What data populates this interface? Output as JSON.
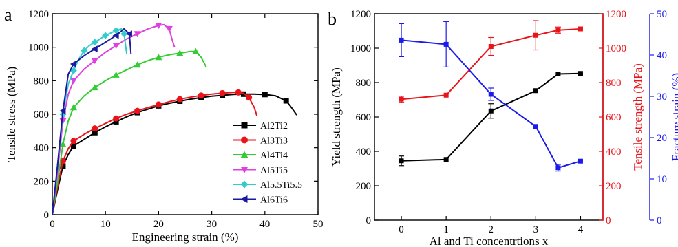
{
  "chart_data": [
    {
      "type": "line",
      "panel_label": "a",
      "xlabel": "Engineering strain (%)",
      "ylabel": "Tensile stress (MPa)",
      "xlim": [
        0,
        50
      ],
      "ylim": [
        0,
        1200
      ],
      "xticks": [
        0,
        10,
        20,
        30,
        40,
        50
      ],
      "yticks": [
        0,
        200,
        400,
        600,
        800,
        1000,
        1200
      ],
      "legend_position": "bottom-right",
      "series": [
        {
          "name": "Al2Ti2",
          "color": "#000000",
          "marker": "square",
          "x": [
            0,
            1,
            2,
            3,
            4,
            6,
            8,
            10,
            12,
            14,
            16,
            18,
            20,
            22,
            24,
            26,
            28,
            30,
            32,
            34,
            36,
            38,
            40,
            42,
            44,
            45,
            46
          ],
          "y": [
            0,
            150,
            290,
            360,
            410,
            450,
            490,
            525,
            555,
            585,
            610,
            630,
            650,
            665,
            678,
            690,
            700,
            708,
            713,
            718,
            720,
            720,
            718,
            710,
            680,
            640,
            595
          ]
        },
        {
          "name": "Al3Ti3",
          "color": "#e8141a",
          "marker": "circle",
          "x": [
            0,
            1,
            2,
            3,
            4,
            6,
            8,
            10,
            12,
            14,
            16,
            18,
            20,
            22,
            24,
            26,
            28,
            30,
            32,
            34,
            35,
            36,
            37,
            38,
            38.5
          ],
          "y": [
            0,
            170,
            320,
            395,
            440,
            480,
            515,
            545,
            575,
            600,
            620,
            640,
            658,
            675,
            690,
            702,
            712,
            720,
            726,
            730,
            730,
            725,
            700,
            640,
            590
          ]
        },
        {
          "name": "Al4Ti4",
          "color": "#33cc33",
          "marker": "triangle",
          "x": [
            0,
            1,
            2,
            3,
            4,
            6,
            8,
            10,
            12,
            14,
            16,
            18,
            20,
            22,
            24,
            26,
            27,
            28,
            29
          ],
          "y": [
            0,
            200,
            420,
            560,
            640,
            710,
            760,
            800,
            835,
            865,
            895,
            920,
            940,
            955,
            965,
            975,
            975,
            940,
            880
          ]
        },
        {
          "name": "Al5Ti5",
          "color": "#e040e0",
          "marker": "tri-down",
          "x": [
            0,
            1,
            2,
            3,
            4,
            6,
            8,
            10,
            12,
            14,
            16,
            18,
            20,
            21,
            22,
            22.5,
            23
          ],
          "y": [
            0,
            260,
            560,
            720,
            800,
            870,
            920,
            970,
            1010,
            1050,
            1080,
            1110,
            1130,
            1135,
            1110,
            1050,
            1000
          ]
        },
        {
          "name": "Al5.5Ti5.5",
          "color": "#33cccc",
          "marker": "diamond",
          "x": [
            0,
            1,
            2,
            3,
            4,
            5,
            6,
            7,
            8,
            9,
            10,
            11,
            12,
            13,
            13.5,
            14
          ],
          "y": [
            0,
            300,
            600,
            780,
            860,
            930,
            980,
            1010,
            1030,
            1050,
            1070,
            1085,
            1100,
            1110,
            1080,
            960
          ]
        },
        {
          "name": "Al6Ti6",
          "color": "#1a1aa0",
          "marker": "tri-left",
          "x": [
            0,
            1,
            2,
            3,
            4,
            6,
            8,
            10,
            12,
            13.5,
            14.5,
            14.8
          ],
          "y": [
            0,
            300,
            620,
            840,
            900,
            950,
            990,
            1030,
            1070,
            1110,
            1080,
            960
          ]
        }
      ]
    },
    {
      "type": "line",
      "panel_label": "b",
      "xlabel": "Al and Ti concentrtions x",
      "ylabel_left": "Yield strength (MPa)",
      "ylabel_right1": "Tensile strength (MPa)",
      "ylabel_right2": "Fracture strain (%)",
      "xlim": [
        -0.6,
        4.5
      ],
      "xticks": [
        0,
        1,
        2,
        3,
        4
      ],
      "ylim_left": [
        0,
        1200
      ],
      "yticks_left": [
        0,
        200,
        400,
        600,
        800,
        1000,
        1200
      ],
      "ylim_right1": [
        0,
        1200
      ],
      "yticks_right1": [
        0,
        200,
        400,
        600,
        800,
        1000,
        1200
      ],
      "ylim_right2": [
        0,
        50
      ],
      "yticks_right2": [
        0,
        10,
        20,
        30,
        40,
        50
      ],
      "series": [
        {
          "axis": "left",
          "color": "#000000",
          "marker": "square",
          "x": [
            0,
            1,
            2,
            3,
            3.5,
            4
          ],
          "y": [
            345,
            353,
            635,
            753,
            850,
            853
          ],
          "err": [
            28,
            0,
            42,
            0,
            0,
            0
          ]
        },
        {
          "axis": "right1",
          "color": "#e8141a",
          "marker": "square",
          "x": [
            0,
            1,
            2,
            3,
            3.5,
            4
          ],
          "y": [
            703,
            727,
            1010,
            1075,
            1105,
            1112
          ],
          "err": [
            18,
            0,
            52,
            85,
            18,
            0
          ]
        },
        {
          "axis": "right2",
          "color": "#1a1aee",
          "marker": "square",
          "x": [
            0,
            1,
            2,
            3,
            3.5,
            4
          ],
          "y": [
            43.6,
            42.6,
            30.5,
            22.7,
            12.7,
            14.3
          ],
          "err": [
            4,
            5.5,
            1.5,
            0,
            0.8,
            0
          ]
        }
      ],
      "colors": {
        "left_axis": "#000000",
        "right1_axis": "#e8141a",
        "right2_axis": "#1a1aee"
      }
    }
  ]
}
